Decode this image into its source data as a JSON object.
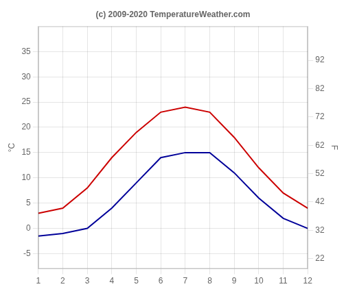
{
  "chart_data": {
    "type": "line",
    "title": "(c) 2009-2020 TemperatureWeather.com",
    "ylabel": "°C",
    "y2label": "F",
    "x": [
      1,
      2,
      3,
      4,
      5,
      6,
      7,
      8,
      9,
      10,
      11,
      12
    ],
    "series": [
      {
        "color": "#cc0000",
        "values": [
          3,
          4,
          8,
          14,
          19,
          23,
          24,
          23,
          18,
          12,
          7,
          4
        ]
      },
      {
        "color": "#000099",
        "values": [
          -1.5,
          -1,
          0,
          4,
          9,
          14,
          15,
          15,
          11,
          6,
          2,
          0
        ]
      }
    ],
    "xlim": [
      1,
      12
    ],
    "xticks": [
      1,
      2,
      3,
      4,
      5,
      6,
      7,
      8,
      9,
      10,
      11,
      12
    ],
    "ylim": [
      -8,
      40
    ],
    "yticks": [
      -5,
      0,
      5,
      10,
      15,
      20,
      25,
      30,
      35
    ],
    "y2lim": [
      18.4,
      104
    ],
    "y2ticks": [
      22,
      32,
      42,
      52,
      62,
      72,
      82,
      92
    ],
    "grid": true
  }
}
